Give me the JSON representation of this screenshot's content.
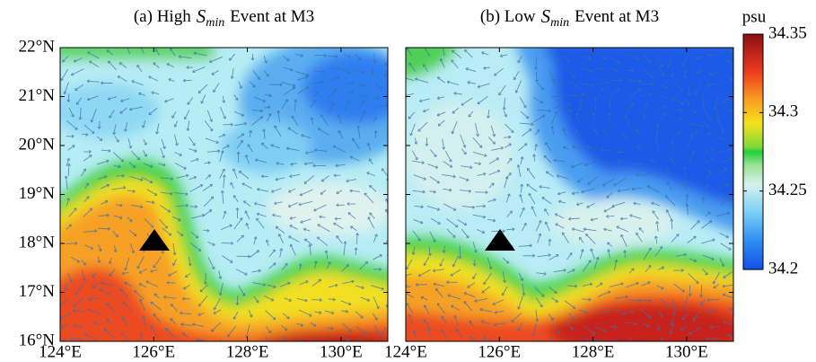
{
  "chart_data": {
    "type": "map",
    "panels": [
      {
        "title_prefix": "(a) High",
        "title_symbol": "S",
        "title_subscript": "min",
        "title_suffix": "Event at M3"
      },
      {
        "title_prefix": "(b) Low",
        "title_symbol": "S",
        "title_subscript": "min",
        "title_suffix": "Event at M3"
      }
    ],
    "xlim": [
      124,
      131
    ],
    "ylim": [
      16,
      22
    ],
    "xticks": [
      {
        "value": 124,
        "label": "124°E"
      },
      {
        "value": 126,
        "label": "126°E"
      },
      {
        "value": 128,
        "label": "128°E"
      },
      {
        "value": 130,
        "label": "130°E"
      }
    ],
    "yticks": [
      {
        "value": 16,
        "label": "16°N"
      },
      {
        "value": 17,
        "label": "17°N"
      },
      {
        "value": 18,
        "label": "18°N"
      },
      {
        "value": 19,
        "label": "19°N"
      },
      {
        "value": 20,
        "label": "20°N"
      },
      {
        "value": 21,
        "label": "21°N"
      },
      {
        "value": 22,
        "label": "22°N"
      }
    ],
    "colorbar": {
      "label": "psu",
      "clim": [
        34.2,
        34.35
      ],
      "ticks": [
        34.2,
        34.25,
        34.3,
        34.35
      ]
    }
  }
}
